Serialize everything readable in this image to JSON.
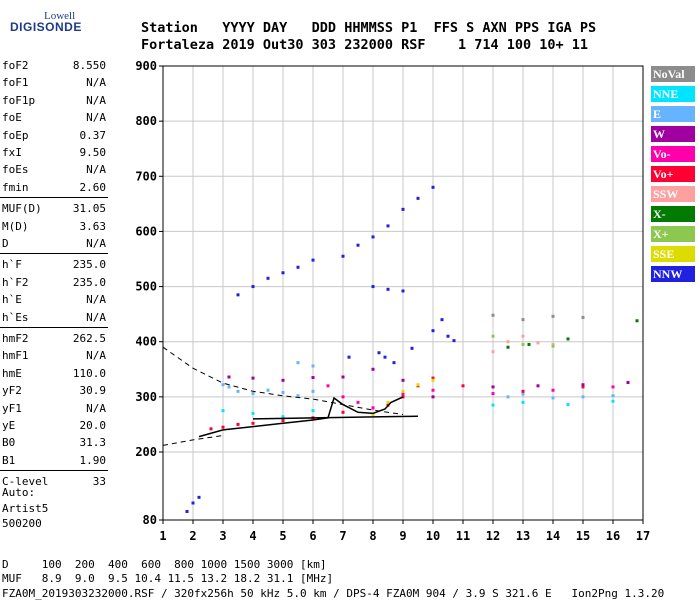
{
  "logo": {
    "line1": "Lowell",
    "line2": "DIGISONDE"
  },
  "header": {
    "row1": "Station   YYYY DAY   DDD HHMMSS P1  FFS S AXN PPS IGA PS",
    "row2": "Fortaleza 2019 Out30 303 232000 RSF    1 714 100 10+ 11"
  },
  "params": [
    {
      "name": "foF2",
      "value": "8.550"
    },
    {
      "name": "foF1",
      "value": "N/A"
    },
    {
      "name": "foF1p",
      "value": "N/A"
    },
    {
      "name": "foE",
      "value": "N/A"
    },
    {
      "name": "foEp",
      "value": "0.37"
    },
    {
      "name": "fxI",
      "value": "9.50"
    },
    {
      "name": "foEs",
      "value": "N/A"
    },
    {
      "name": "fmin",
      "value": "2.60"
    },
    {
      "name": "MUF(D)",
      "value": "31.05"
    },
    {
      "name": "M(D)",
      "value": "3.63"
    },
    {
      "name": "D",
      "value": "N/A"
    },
    {
      "name": "h`F",
      "value": "235.0"
    },
    {
      "name": "h`F2",
      "value": "235.0"
    },
    {
      "name": "h`E",
      "value": "N/A"
    },
    {
      "name": "h`Es",
      "value": "N/A"
    },
    {
      "name": "hmF2",
      "value": "262.5"
    },
    {
      "name": "hmF1",
      "value": "N/A"
    },
    {
      "name": "hmE",
      "value": "110.0"
    },
    {
      "name": "yF2",
      "value": "30.9"
    },
    {
      "name": "yF1",
      "value": "N/A"
    },
    {
      "name": "yE",
      "value": "20.0"
    },
    {
      "name": "B0",
      "value": "31.3"
    },
    {
      "name": "B1",
      "value": "1.90"
    },
    {
      "name": "C-level",
      "value": "33"
    }
  ],
  "auto": {
    "line1": "Auto:",
    "line2": "Artist5",
    "line3": "500200"
  },
  "legend": [
    {
      "label": "NoVal",
      "color": "#8c8c8c"
    },
    {
      "label": "NNE",
      "color": "#00e5ff"
    },
    {
      "label": "E",
      "color": "#66b3ff"
    },
    {
      "label": "W",
      "color": "#a000a0"
    },
    {
      "label": "Vo-",
      "color": "#ff00aa"
    },
    {
      "label": "Vo+",
      "color": "#ff0033"
    },
    {
      "label": "SSW",
      "color": "#ffa0a0"
    },
    {
      "label": "X-",
      "color": "#007a00"
    },
    {
      "label": "X+",
      "color": "#8cc850"
    },
    {
      "label": "SSE",
      "color": "#dcdc00"
    },
    {
      "label": "NNW",
      "color": "#2020e0"
    }
  ],
  "footer": {
    "d_line": "D     100  200  400  600  800 1000 1500 3000 [km]",
    "muf_line": "MUF   8.9  9.0  9.5 10.4 11.5 13.2 18.2 31.1 [MHz]",
    "info_line": "FZA0M_2019303232000.RSF / 320fx256h 50 kHz 5.0 km / DPS-4 FZA0M 904 / 3.9 S 321.6 E   Ion2Png 1.3.20"
  },
  "chart_data": {
    "type": "scatter",
    "xlim": [
      1,
      17
    ],
    "ylim": [
      80,
      900
    ],
    "xticks": [
      "1",
      "2",
      "3",
      "4",
      "5",
      "6",
      "7",
      "8",
      "9",
      "10",
      "11",
      "12",
      "13",
      "14",
      "15",
      "16",
      "17"
    ],
    "yticks": [
      "80",
      "200",
      "300",
      "400",
      "500",
      "600",
      "700",
      "800",
      "900"
    ],
    "grid": true,
    "series": [
      {
        "name": "NNW",
        "color": "#2020e0",
        "points": [
          [
            1.8,
            95
          ],
          [
            2.0,
            110
          ],
          [
            2.2,
            120
          ],
          [
            8.2,
            380
          ],
          [
            8.4,
            372
          ],
          [
            9.3,
            388
          ],
          [
            10.0,
            420
          ],
          [
            10.3,
            440
          ],
          [
            10.5,
            410
          ],
          [
            10.7,
            402
          ],
          [
            7.2,
            372
          ],
          [
            8.7,
            362
          ]
        ]
      },
      {
        "name": "E",
        "color": "#66b3ff",
        "points": [
          [
            3.0,
            322
          ],
          [
            3.2,
            318
          ],
          [
            3.5,
            310
          ],
          [
            4.0,
            306
          ],
          [
            4.5,
            312
          ],
          [
            5.0,
            308
          ],
          [
            5.5,
            302
          ],
          [
            6.0,
            310
          ],
          [
            5.5,
            362
          ],
          [
            6.0,
            356
          ],
          [
            12.5,
            300
          ],
          [
            13.0,
            305
          ],
          [
            14.0,
            298
          ],
          [
            15.0,
            300
          ],
          [
            16.0,
            302
          ]
        ]
      },
      {
        "name": "Vo+",
        "color": "#ff0033",
        "points": [
          [
            2.6,
            242
          ],
          [
            3.0,
            245
          ],
          [
            3.5,
            250
          ],
          [
            4.0,
            252
          ],
          [
            5.0,
            257
          ],
          [
            6.0,
            262
          ],
          [
            7.0,
            272
          ],
          [
            8.0,
            280
          ],
          [
            8.5,
            285
          ],
          [
            9.0,
            300
          ],
          [
            9.5,
            320
          ],
          [
            10.0,
            334
          ],
          [
            11.0,
            320
          ],
          [
            13.0,
            310
          ],
          [
            15.0,
            318
          ]
        ]
      },
      {
        "name": "W",
        "color": "#a000a0",
        "points": [
          [
            3.2,
            336
          ],
          [
            4.0,
            334
          ],
          [
            5.0,
            330
          ],
          [
            6.0,
            335
          ],
          [
            7.0,
            336
          ],
          [
            8.0,
            350
          ],
          [
            9.0,
            330
          ],
          [
            10.0,
            300
          ],
          [
            12.0,
            318
          ],
          [
            13.5,
            320
          ],
          [
            15.0,
            322
          ],
          [
            16.5,
            326
          ]
        ]
      },
      {
        "name": "Vo-",
        "color": "#ff00aa",
        "points": [
          [
            6.5,
            320
          ],
          [
            7.0,
            300
          ],
          [
            7.5,
            290
          ],
          [
            8.0,
            280
          ],
          [
            9.0,
            305
          ],
          [
            10.0,
            312
          ],
          [
            12.0,
            306
          ],
          [
            14.0,
            312
          ],
          [
            16.0,
            318
          ]
        ]
      },
      {
        "name": "NNE",
        "color": "#00e5ff",
        "points": [
          [
            3.0,
            275
          ],
          [
            4.0,
            270
          ],
          [
            5.0,
            264
          ],
          [
            6.0,
            275
          ],
          [
            12.0,
            285
          ],
          [
            13.0,
            290
          ],
          [
            14.5,
            286
          ],
          [
            16.0,
            292
          ]
        ]
      },
      {
        "name": "SSW",
        "color": "#ffa0a0",
        "points": [
          [
            12.0,
            382
          ],
          [
            12.5,
            400
          ],
          [
            13.0,
            410
          ],
          [
            13.5,
            398
          ],
          [
            14.0,
            395
          ]
        ]
      },
      {
        "name": "SSE",
        "color": "#dcdc00",
        "points": [
          [
            8.0,
            268
          ],
          [
            8.5,
            290
          ],
          [
            9.0,
            310
          ],
          [
            9.5,
            322
          ],
          [
            10.0,
            330
          ]
        ]
      },
      {
        "name": "X-",
        "color": "#007a00",
        "points": [
          [
            12.5,
            390
          ],
          [
            13.2,
            395
          ],
          [
            14.5,
            405
          ],
          [
            16.8,
            438
          ]
        ]
      },
      {
        "name": "X+",
        "color": "#8cc850",
        "points": [
          [
            12.0,
            410
          ],
          [
            13.0,
            395
          ],
          [
            14.0,
            392
          ]
        ]
      },
      {
        "name": "NoVal",
        "color": "#8c8c8c",
        "points": [
          [
            12.0,
            448
          ],
          [
            13.0,
            440
          ],
          [
            14.0,
            446
          ],
          [
            15.0,
            444
          ]
        ]
      },
      {
        "name": "multihop",
        "color": "#2020e0",
        "points": [
          [
            3.5,
            485
          ],
          [
            4.0,
            500
          ],
          [
            4.5,
            515
          ],
          [
            5.0,
            525
          ],
          [
            5.5,
            535
          ],
          [
            6.0,
            548
          ],
          [
            7.0,
            555
          ],
          [
            7.5,
            575
          ],
          [
            8.0,
            590
          ],
          [
            8.5,
            610
          ],
          [
            9.0,
            640
          ],
          [
            9.5,
            660
          ],
          [
            10.0,
            680
          ],
          [
            8.0,
            500
          ],
          [
            8.5,
            495
          ],
          [
            9.0,
            492
          ]
        ]
      }
    ],
    "fitted_curve": [
      [
        2.2,
        228
      ],
      [
        3.0,
        240
      ],
      [
        4.0,
        246
      ],
      [
        5.0,
        252
      ],
      [
        6.0,
        258
      ],
      [
        6.5,
        262
      ],
      [
        6.7,
        298
      ],
      [
        7.0,
        286
      ],
      [
        7.5,
        272
      ],
      [
        8.0,
        270
      ],
      [
        8.4,
        278
      ],
      [
        8.6,
        290
      ],
      [
        9.0,
        300
      ]
    ],
    "dashed_curve": [
      [
        1.0,
        390
      ],
      [
        2.0,
        352
      ],
      [
        3.0,
        325
      ],
      [
        4.0,
        310
      ],
      [
        5.0,
        302
      ],
      [
        6.0,
        296
      ],
      [
        7.0,
        286
      ],
      [
        8.0,
        276
      ],
      [
        9.0,
        268
      ]
    ],
    "dashed_lower": [
      [
        1.0,
        212
      ],
      [
        2.0,
        222
      ],
      [
        3.0,
        230
      ]
    ],
    "ref_line": [
      [
        4.0,
        260
      ],
      [
        9.5,
        265
      ]
    ]
  }
}
